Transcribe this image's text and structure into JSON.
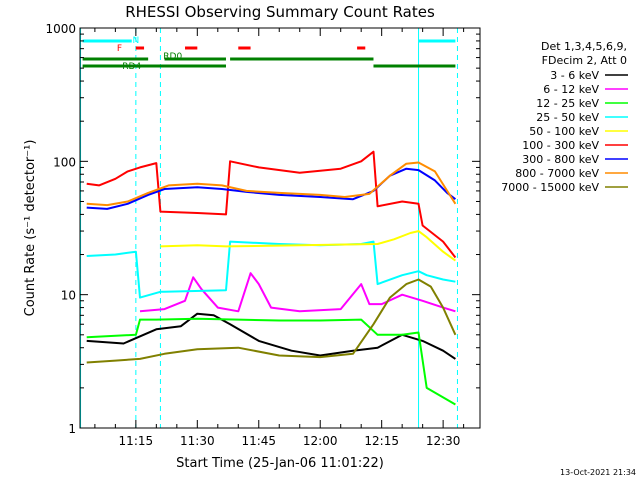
{
  "chart_data": {
    "type": "line",
    "title": "RHESSI Observing Summary Count Rates",
    "xlabel": "Start Time (25-Jan-06 11:01:22)",
    "ylabel": "Count Rate (s⁻¹ detector⁻¹)",
    "yscale": "log",
    "ylim": [
      1,
      1000
    ],
    "xlim_minutes": [
      11.03,
      12.6
    ],
    "xlim": [
      "11:01:22",
      "12:39:00"
    ],
    "x_tick_labels": [
      "11:15",
      "11:30",
      "11:45",
      "12:00",
      "12:15",
      "12:30"
    ],
    "y_tick_labels": [
      "1",
      "10",
      "100",
      "1000"
    ],
    "legend_header": [
      "Det 1,3,4,5,6,9,",
      "FDecim 2, Att 0"
    ],
    "legend_position": "right",
    "footer": "13-Oct-2021 21:34",
    "flag_labels": [
      "N",
      "F",
      "RD0",
      "RD4"
    ],
    "series": [
      {
        "name": "3 - 6 keV",
        "color": "#000000",
        "x": [
          "11:03",
          "11:12",
          "11:20",
          "11:26",
          "11:30",
          "11:34",
          "11:38",
          "11:45",
          "11:53",
          "12:00",
          "12:08",
          "12:14",
          "12:20",
          "12:25",
          "12:30",
          "12:33"
        ],
        "y": [
          4.5,
          4.3,
          5.5,
          5.8,
          7.2,
          7.0,
          6.0,
          4.5,
          3.8,
          3.5,
          3.8,
          4.0,
          5.0,
          4.5,
          3.8,
          3.3
        ]
      },
      {
        "name": "6 - 12 keV",
        "color": "#ff00ff",
        "x": [
          "11:16",
          "11:22",
          "11:27",
          "11:29",
          "11:31",
          "11:35",
          "11:40",
          "11:43",
          "11:45",
          "11:48",
          "11:55",
          "12:05",
          "12:10",
          "12:12",
          "12:15",
          "12:20",
          "12:25",
          "12:30",
          "12:33"
        ],
        "y": [
          7.5,
          7.8,
          9.0,
          13.5,
          11.0,
          8.0,
          7.5,
          14.5,
          12.0,
          8.0,
          7.5,
          7.8,
          12.0,
          8.5,
          8.5,
          10.0,
          9.0,
          8.0,
          7.5
        ]
      },
      {
        "name": "12 - 25 keV",
        "color": "#00ff00",
        "x": [
          "11:03",
          "11:15",
          "11:16",
          "11:20",
          "11:30",
          "11:40",
          "11:50",
          "12:00",
          "12:10",
          "12:14",
          "12:20",
          "12:24",
          "12:26",
          "12:33"
        ],
        "y": [
          4.8,
          5.0,
          6.5,
          6.5,
          6.6,
          6.5,
          6.4,
          6.4,
          6.5,
          5.0,
          5.0,
          5.2,
          2.0,
          1.5
        ]
      },
      {
        "name": "25 - 50 keV",
        "color": "#00ffff",
        "x": [
          "11:03",
          "11:10",
          "11:15",
          "11:16",
          "11:21",
          "11:22",
          "11:37",
          "11:38",
          "11:50",
          "12:00",
          "12:10",
          "12:13",
          "12:14",
          "12:20",
          "12:24",
          "12:26",
          "12:30",
          "12:33"
        ],
        "y": [
          19.5,
          20,
          21,
          9.5,
          10.5,
          10.5,
          10.8,
          25,
          24,
          23.5,
          24,
          25,
          12.0,
          14.0,
          15.0,
          14.0,
          13.0,
          12.5
        ]
      },
      {
        "name": "50 - 100 keV",
        "color": "#ffff00",
        "x": [
          "11:21",
          "11:30",
          "11:37",
          "12:14",
          "12:18",
          "12:22",
          "12:24",
          "12:26",
          "12:30",
          "12:33"
        ],
        "y": [
          23,
          23.5,
          23,
          24,
          26,
          29,
          30,
          27,
          21,
          18
        ]
      },
      {
        "name": "100 - 300 keV",
        "color": "#ff0000",
        "x": [
          "11:03",
          "11:06",
          "11:10",
          "11:13",
          "11:16",
          "11:20",
          "11:21",
          "11:30",
          "11:37",
          "11:38",
          "11:45",
          "11:55",
          "12:05",
          "12:10",
          "12:13",
          "12:14",
          "12:20",
          "12:24",
          "12:25",
          "12:30",
          "12:33"
        ],
        "y": [
          68,
          66,
          74,
          84,
          90,
          97,
          42,
          41,
          40,
          100,
          90,
          82,
          88,
          100,
          118,
          46,
          50,
          48,
          33,
          25,
          19
        ]
      },
      {
        "name": "300 - 800 keV",
        "color": "#0000ff",
        "x": [
          "11:03",
          "11:08",
          "11:13",
          "11:18",
          "11:22",
          "11:30",
          "11:36",
          "11:42",
          "11:50",
          "12:00",
          "12:08",
          "12:13",
          "12:17",
          "12:21",
          "12:24",
          "12:28",
          "12:31",
          "12:33"
        ],
        "y": [
          45,
          44,
          48,
          56,
          62,
          64,
          62,
          59,
          56,
          54,
          52,
          60,
          78,
          88,
          86,
          72,
          58,
          52
        ]
      },
      {
        "name": "800 - 7000 keV",
        "color": "#ff8c00",
        "x": [
          "11:03",
          "11:08",
          "11:13",
          "11:18",
          "11:23",
          "11:30",
          "11:36",
          "11:42",
          "11:50",
          "12:00",
          "12:06",
          "12:12",
          "12:17",
          "12:21",
          "12:24",
          "12:28",
          "12:31",
          "12:33"
        ],
        "y": [
          48,
          47,
          50,
          58,
          66,
          68,
          66,
          60,
          58,
          56,
          54,
          57,
          78,
          96,
          98,
          84,
          60,
          48
        ]
      },
      {
        "name": "7000 - 15000 keV",
        "color": "#808000",
        "x": [
          "11:03",
          "11:10",
          "11:16",
          "11:22",
          "11:30",
          "11:40",
          "11:50",
          "12:00",
          "12:08",
          "12:13",
          "12:17",
          "12:21",
          "12:24",
          "12:27",
          "12:30",
          "12:33"
        ],
        "y": [
          3.1,
          3.2,
          3.3,
          3.6,
          3.9,
          4.0,
          3.5,
          3.4,
          3.6,
          6.0,
          9.5,
          12.0,
          13.0,
          11.5,
          8.0,
          5.0
        ]
      }
    ]
  }
}
